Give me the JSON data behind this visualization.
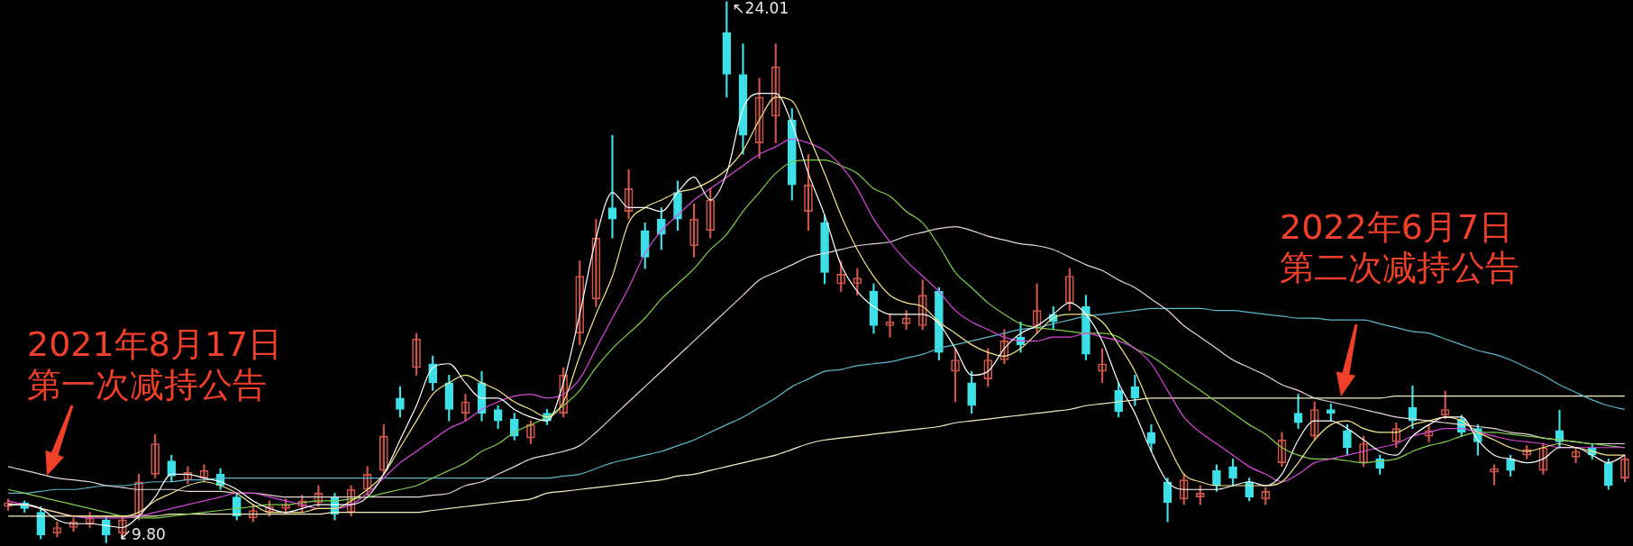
{
  "chart_data": {
    "type": "candlestick",
    "tick_labels": false,
    "categories": [
      null,
      null,
      null,
      null,
      null,
      null,
      null,
      null,
      null,
      null,
      null,
      null,
      null,
      null,
      null,
      null,
      null,
      null,
      null,
      null,
      null,
      null,
      null,
      null,
      null,
      null,
      null,
      null,
      null,
      null,
      null,
      null,
      null,
      null,
      null,
      null,
      null,
      null,
      null,
      null,
      null,
      null,
      null,
      null,
      null,
      null,
      null,
      null,
      null,
      null,
      null,
      null,
      null,
      null,
      null,
      null,
      null,
      null,
      null,
      null,
      null,
      null,
      null,
      null,
      null,
      null,
      null,
      null,
      null,
      null,
      null,
      null,
      null,
      null,
      null,
      null,
      null,
      null,
      null,
      null,
      null,
      null,
      null,
      null,
      null,
      null,
      null,
      null,
      null,
      null,
      null,
      null,
      null,
      null,
      null,
      null,
      null,
      null,
      null,
      null
    ],
    "ohlc": [
      [
        10.75,
        10.95,
        10.65,
        10.85
      ],
      [
        10.85,
        10.9,
        10.6,
        10.7
      ],
      [
        10.6,
        10.75,
        9.9,
        10.0
      ],
      [
        10.05,
        10.35,
        9.95,
        10.2
      ],
      [
        10.2,
        10.45,
        10.1,
        10.35
      ],
      [
        10.3,
        10.6,
        10.2,
        10.45
      ],
      [
        10.4,
        10.5,
        9.8,
        10.0
      ],
      [
        10.05,
        10.5,
        9.95,
        10.4
      ],
      [
        10.5,
        11.6,
        10.4,
        11.4
      ],
      [
        11.6,
        12.64,
        11.5,
        12.4
      ],
      [
        11.95,
        12.1,
        11.4,
        11.55
      ],
      [
        11.45,
        11.8,
        11.35,
        11.65
      ],
      [
        11.5,
        11.85,
        11.4,
        11.7
      ],
      [
        11.6,
        11.75,
        11.2,
        11.3
      ],
      [
        11.0,
        11.1,
        10.4,
        10.5
      ],
      [
        10.45,
        10.8,
        10.35,
        10.65
      ],
      [
        10.6,
        10.9,
        10.5,
        10.75
      ],
      [
        10.7,
        10.95,
        10.55,
        10.8
      ],
      [
        10.75,
        11.05,
        10.6,
        10.9
      ],
      [
        10.85,
        11.3,
        10.75,
        11.1
      ],
      [
        11.0,
        11.1,
        10.4,
        10.55
      ],
      [
        10.6,
        11.3,
        10.5,
        11.2
      ],
      [
        11.2,
        11.8,
        11.05,
        11.6
      ],
      [
        11.7,
        12.9,
        11.6,
        12.6
      ],
      [
        13.6,
        13.9,
        13.1,
        13.3
      ],
      [
        14.4,
        15.3,
        14.2,
        15.15
      ],
      [
        14.5,
        14.7,
        13.8,
        14.0
      ],
      [
        14.0,
        14.2,
        13.0,
        13.3
      ],
      [
        13.2,
        13.7,
        13.0,
        13.5
      ],
      [
        14.0,
        14.3,
        13.0,
        13.2
      ],
      [
        13.3,
        13.4,
        12.8,
        13.0
      ],
      [
        13.05,
        13.2,
        12.5,
        12.6
      ],
      [
        12.55,
        13.0,
        12.4,
        12.9
      ],
      [
        13.2,
        13.3,
        12.9,
        13.0
      ],
      [
        13.2,
        14.4,
        13.1,
        14.2
      ],
      [
        15.3,
        17.2,
        15.0,
        16.8
      ],
      [
        16.2,
        18.3,
        16.0,
        17.8
      ],
      [
        18.6,
        20.5,
        17.8,
        18.3
      ],
      [
        18.5,
        19.6,
        18.3,
        19.1
      ],
      [
        18.0,
        18.2,
        17.0,
        17.3
      ],
      [
        18.3,
        18.6,
        17.5,
        17.9
      ],
      [
        19.0,
        19.3,
        18.0,
        18.3
      ],
      [
        17.6,
        18.7,
        17.3,
        18.3
      ],
      [
        18.0,
        19.1,
        17.8,
        18.8
      ],
      [
        23.2,
        24.01,
        21.5,
        22.1
      ],
      [
        22.1,
        22.9,
        20.0,
        20.5
      ],
      [
        20.3,
        22.0,
        19.9,
        21.5
      ],
      [
        21.0,
        22.9,
        20.3,
        22.3
      ],
      [
        20.9,
        21.2,
        18.8,
        19.2
      ],
      [
        18.5,
        20.0,
        18.0,
        19.2
      ],
      [
        18.2,
        18.4,
        16.6,
        16.9
      ],
      [
        16.6,
        17.2,
        16.4,
        16.85
      ],
      [
        16.6,
        17.0,
        16.3,
        16.75
      ],
      [
        16.4,
        16.6,
        15.3,
        15.5
      ],
      [
        15.5,
        15.8,
        15.2,
        15.6
      ],
      [
        15.55,
        15.9,
        15.4,
        15.7
      ],
      [
        15.5,
        16.7,
        15.4,
        16.3
      ],
      [
        16.4,
        16.5,
        14.6,
        14.8
      ],
      [
        14.3,
        14.9,
        13.5,
        14.6
      ],
      [
        14.0,
        14.3,
        13.2,
        13.4
      ],
      [
        14.1,
        14.9,
        13.9,
        14.6
      ],
      [
        14.6,
        15.4,
        14.5,
        15.1
      ],
      [
        15.2,
        15.6,
        14.8,
        15.0
      ],
      [
        15.5,
        16.6,
        15.3,
        15.9
      ],
      [
        15.8,
        16.0,
        15.4,
        15.6
      ],
      [
        16.1,
        17.0,
        15.9,
        16.8
      ],
      [
        16.0,
        16.3,
        14.6,
        14.75
      ],
      [
        14.3,
        14.9,
        14.0,
        14.5
      ],
      [
        13.8,
        14.0,
        13.1,
        13.25
      ],
      [
        13.9,
        14.2,
        13.4,
        13.6
      ],
      [
        12.7,
        12.9,
        12.2,
        12.4
      ],
      [
        11.4,
        11.5,
        10.35,
        10.85
      ],
      [
        10.95,
        11.6,
        10.8,
        11.45
      ],
      [
        11.0,
        11.3,
        10.8,
        11.1
      ],
      [
        11.7,
        11.85,
        11.15,
        11.3
      ],
      [
        11.8,
        12.0,
        11.3,
        11.5
      ],
      [
        11.4,
        11.5,
        10.9,
        11.0
      ],
      [
        10.95,
        11.25,
        10.8,
        11.15
      ],
      [
        11.9,
        12.7,
        11.8,
        12.5
      ],
      [
        13.2,
        13.7,
        12.8,
        12.95
      ],
      [
        12.6,
        13.5,
        12.5,
        13.3
      ],
      [
        13.3,
        13.45,
        13.0,
        13.2
      ],
      [
        12.75,
        12.9,
        12.1,
        12.3
      ],
      [
        11.9,
        12.6,
        11.8,
        12.4
      ],
      [
        12.0,
        12.1,
        11.6,
        11.75
      ],
      [
        12.45,
        12.95,
        12.3,
        12.8
      ],
      [
        13.35,
        13.92,
        12.8,
        13.0
      ],
      [
        12.6,
        12.9,
        12.45,
        12.75
      ],
      [
        13.15,
        13.78,
        13.05,
        13.3
      ],
      [
        13.05,
        13.15,
        12.6,
        12.7
      ],
      [
        12.8,
        12.9,
        12.1,
        12.45
      ],
      [
        11.65,
        11.85,
        11.32,
        11.75
      ],
      [
        12.0,
        12.1,
        11.55,
        11.7
      ],
      [
        12.1,
        12.35,
        12.0,
        12.25
      ],
      [
        11.7,
        12.4,
        11.6,
        12.3
      ],
      [
        12.75,
        13.28,
        12.3,
        12.45
      ],
      [
        12.05,
        12.3,
        11.9,
        12.2
      ],
      [
        12.3,
        12.4,
        12.0,
        12.1
      ],
      [
        11.9,
        12.0,
        11.2,
        11.3
      ],
      [
        11.5,
        12.1,
        11.4,
        12.0
      ]
    ],
    "series": [
      {
        "type": "line",
        "color": "#ffffff",
        "values": [
          10.8,
          10.8,
          10.7,
          10.4,
          10.3,
          10.3,
          10.25,
          10.2,
          10.5,
          11.0,
          11.6,
          11.6,
          11.5,
          11.4,
          11.2,
          10.9,
          10.7,
          10.6,
          10.7,
          10.8,
          10.8,
          10.8,
          11.0,
          11.6,
          12.5,
          13.4,
          14.4,
          14.5,
          14.0,
          13.6,
          13.6,
          13.3,
          13.1,
          13.0,
          14.0,
          15.8,
          17.8,
          19.0,
          18.6,
          18.6,
          18.5,
          19.0,
          19.4,
          18.8,
          19.5,
          21.2,
          21.6,
          21.6,
          20.8,
          19.5,
          18.4,
          17.1,
          16.4,
          16.0,
          15.8,
          15.8,
          15.8,
          15.55,
          14.9,
          14.2,
          14.3,
          14.9,
          15.3,
          15.5,
          15.8,
          16.1,
          15.8,
          15.1,
          14.0,
          13.2,
          12.2,
          11.4,
          11.2,
          11.2,
          11.2,
          11.3,
          11.4,
          11.3,
          11.6,
          12.5,
          13.0,
          13.0,
          12.8,
          12.5,
          12.2,
          12.1,
          12.6,
          12.9,
          13.1,
          13.1,
          12.5,
          12.1,
          12.0,
          11.9,
          12.0,
          12.3,
          12.3,
          12.1,
          11.9,
          12.1
        ]
      },
      {
        "type": "line",
        "color": "#f2e68a",
        "values": [
          10.8,
          10.8,
          10.7,
          10.6,
          10.5,
          10.5,
          10.5,
          10.5,
          10.6,
          10.9,
          11.1,
          11.3,
          11.4,
          11.3,
          11.1,
          10.8,
          10.6,
          10.6,
          10.6,
          10.7,
          10.7,
          10.9,
          11.2,
          11.6,
          12.3,
          13.0,
          13.7,
          14.0,
          14.2,
          14.0,
          13.8,
          13.5,
          13.3,
          13.1,
          13.5,
          14.7,
          15.8,
          16.8,
          18.2,
          18.6,
          18.8,
          19.0,
          19.1,
          19.3,
          19.6,
          20.1,
          20.9,
          21.5,
          21.4,
          20.5,
          19.5,
          18.4,
          17.5,
          16.8,
          16.3,
          16.1,
          16.0,
          15.6,
          15.3,
          15.0,
          14.8,
          14.7,
          14.9,
          15.3,
          15.7,
          15.8,
          15.8,
          15.6,
          15.0,
          14.3,
          13.3,
          12.4,
          11.6,
          11.4,
          11.3,
          11.3,
          11.3,
          11.3,
          11.4,
          11.9,
          12.5,
          12.9,
          13.0,
          12.8,
          12.7,
          12.7,
          12.9,
          13.0,
          13.1,
          13.0,
          12.7,
          12.5,
          12.3,
          12.2,
          12.3,
          12.4,
          12.3,
          12.2,
          12.1,
          12.1
        ]
      },
      {
        "type": "line",
        "color": "#d84ad8",
        "values": [
          10.9,
          10.8,
          10.7,
          10.6,
          10.5,
          10.45,
          10.45,
          10.45,
          10.5,
          10.6,
          10.7,
          10.8,
          10.9,
          11.0,
          11.1,
          11.1,
          11.0,
          10.9,
          10.8,
          10.7,
          10.7,
          10.8,
          11.1,
          11.5,
          11.9,
          12.2,
          12.5,
          12.8,
          13.0,
          13.3,
          13.5,
          13.65,
          13.7,
          13.6,
          13.7,
          14.1,
          14.9,
          15.7,
          16.5,
          17.4,
          18.0,
          18.4,
          18.8,
          19.1,
          19.4,
          19.7,
          20.0,
          20.2,
          20.4,
          20.3,
          20.1,
          19.7,
          19.1,
          18.3,
          17.7,
          17.2,
          16.8,
          16.4,
          15.9,
          15.6,
          15.4,
          15.2,
          15.1,
          15.1,
          15.2,
          15.2,
          15.3,
          15.2,
          15.1,
          14.9,
          14.5,
          13.8,
          13.1,
          12.7,
          12.4,
          12.1,
          11.8,
          11.6,
          11.4,
          11.6,
          11.9,
          12.0,
          12.1,
          12.2,
          12.3,
          12.4,
          12.6,
          12.7,
          12.8,
          12.8,
          12.7,
          12.6,
          12.5,
          12.45,
          12.4,
          12.3,
          12.3,
          12.3,
          12.3,
          12.3
        ]
      },
      {
        "type": "line",
        "color": "#7fcf4c",
        "values": [
          11.2,
          11.1,
          11.0,
          10.9,
          10.8,
          10.7,
          10.6,
          10.5,
          10.45,
          10.45,
          10.5,
          10.55,
          10.6,
          10.65,
          10.7,
          10.75,
          10.8,
          10.8,
          10.85,
          10.9,
          10.9,
          10.95,
          11.0,
          11.1,
          11.2,
          11.3,
          11.5,
          11.7,
          11.9,
          12.2,
          12.4,
          12.7,
          12.9,
          13.1,
          13.4,
          13.8,
          14.4,
          14.9,
          15.3,
          15.7,
          16.2,
          16.6,
          17.0,
          17.5,
          17.9,
          18.5,
          19.0,
          19.5,
          19.8,
          19.85,
          19.85,
          19.7,
          19.5,
          19.1,
          18.9,
          18.5,
          18.2,
          17.6,
          16.9,
          16.5,
          16.1,
          15.8,
          15.55,
          15.45,
          15.4,
          15.35,
          15.3,
          15.3,
          15.2,
          14.9,
          14.7,
          14.4,
          14.1,
          13.8,
          13.5,
          13.2,
          12.9,
          12.65,
          12.3,
          12.1,
          12.0,
          12.0,
          11.95,
          11.9,
          11.95,
          12.0,
          12.2,
          12.35,
          12.45,
          12.6,
          12.7,
          12.7,
          12.65,
          12.6,
          12.55,
          12.5,
          12.45,
          12.4,
          12.35,
          12.3
        ]
      },
      {
        "type": "line",
        "color": "#e8d6d6",
        "values": [
          11.8,
          11.7,
          11.6,
          11.5,
          11.45,
          11.4,
          11.3,
          11.25,
          11.2,
          11.2,
          11.2,
          11.15,
          11.15,
          11.15,
          11.1,
          11.1,
          11.05,
          11.0,
          11.0,
          11.0,
          11.0,
          11.0,
          11.0,
          11.0,
          11.0,
          11.0,
          11.05,
          11.1,
          11.3,
          11.4,
          11.6,
          11.8,
          12.0,
          12.1,
          12.2,
          12.35,
          12.7,
          13.1,
          13.5,
          13.9,
          14.3,
          14.7,
          15.1,
          15.5,
          15.9,
          16.3,
          16.7,
          16.9,
          17.1,
          17.3,
          17.4,
          17.5,
          17.6,
          17.65,
          17.7,
          17.85,
          17.95,
          18.05,
          18.1,
          18.0,
          17.85,
          17.75,
          17.65,
          17.6,
          17.5,
          17.3,
          17.1,
          16.95,
          16.7,
          16.5,
          16.2,
          15.9,
          15.5,
          15.2,
          14.9,
          14.6,
          14.4,
          14.2,
          13.95,
          13.8,
          13.6,
          13.5,
          13.4,
          13.3,
          13.2,
          13.1,
          13.05,
          13.0,
          12.95,
          12.9,
          12.85,
          12.8,
          12.7,
          12.65,
          12.55,
          12.5,
          12.45,
          12.4,
          12.4,
          12.4
        ]
      },
      {
        "type": "line",
        "color": "#5cb8c8",
        "values": [
          11.1,
          11.1,
          11.15,
          11.2,
          11.2,
          11.25,
          11.3,
          11.3,
          11.35,
          11.4,
          11.4,
          11.45,
          11.45,
          11.5,
          11.5,
          11.5,
          11.5,
          11.5,
          11.5,
          11.5,
          11.5,
          11.5,
          11.5,
          11.5,
          11.5,
          11.5,
          11.5,
          11.5,
          11.5,
          11.5,
          11.5,
          11.5,
          11.5,
          11.5,
          11.55,
          11.6,
          11.75,
          11.9,
          12.0,
          12.1,
          12.2,
          12.35,
          12.5,
          12.7,
          12.9,
          13.1,
          13.35,
          13.6,
          13.9,
          14.1,
          14.3,
          14.35,
          14.45,
          14.5,
          14.55,
          14.65,
          14.75,
          14.9,
          15.0,
          15.1,
          15.2,
          15.3,
          15.4,
          15.45,
          15.55,
          15.65,
          15.75,
          15.8,
          15.85,
          15.9,
          15.95,
          15.95,
          15.95,
          15.95,
          15.9,
          15.9,
          15.85,
          15.8,
          15.75,
          15.7,
          15.7,
          15.65,
          15.65,
          15.65,
          15.55,
          15.45,
          15.35,
          15.3,
          15.15,
          15.0,
          14.85,
          14.75,
          14.6,
          14.4,
          14.2,
          13.95,
          13.75,
          13.55,
          13.4,
          13.3
        ]
      },
      {
        "type": "line",
        "color": "#f5efc4",
        "values": [
          10.5,
          10.5,
          10.5,
          10.5,
          10.5,
          10.5,
          10.5,
          10.5,
          10.5,
          10.5,
          10.55,
          10.55,
          10.55,
          10.55,
          10.55,
          10.55,
          10.55,
          10.55,
          10.55,
          10.55,
          10.6,
          10.6,
          10.6,
          10.6,
          10.6,
          10.6,
          10.65,
          10.7,
          10.75,
          10.8,
          10.85,
          10.9,
          10.95,
          11.1,
          11.15,
          11.2,
          11.25,
          11.3,
          11.35,
          11.4,
          11.45,
          11.55,
          11.6,
          11.7,
          11.8,
          11.9,
          12.0,
          12.1,
          12.25,
          12.4,
          12.5,
          12.55,
          12.6,
          12.65,
          12.7,
          12.75,
          12.8,
          12.85,
          12.95,
          13.0,
          13.05,
          13.1,
          13.15,
          13.2,
          13.25,
          13.3,
          13.4,
          13.45,
          13.5,
          13.55,
          13.6,
          13.6,
          13.6,
          13.6,
          13.6,
          13.6,
          13.6,
          13.6,
          13.6,
          13.6,
          13.6,
          13.6,
          13.6,
          13.6,
          13.6,
          13.65,
          13.65,
          13.65,
          13.65,
          13.65,
          13.65,
          13.65,
          13.65,
          13.65,
          13.65,
          13.65,
          13.65,
          13.65,
          13.65,
          13.65
        ]
      }
    ],
    "annotations": [
      "2021年8月17日",
      "第一次减持公告",
      "2022年6月7日",
      "第二次减持公告",
      "↖24.01",
      "↙9.80"
    ]
  }
}
